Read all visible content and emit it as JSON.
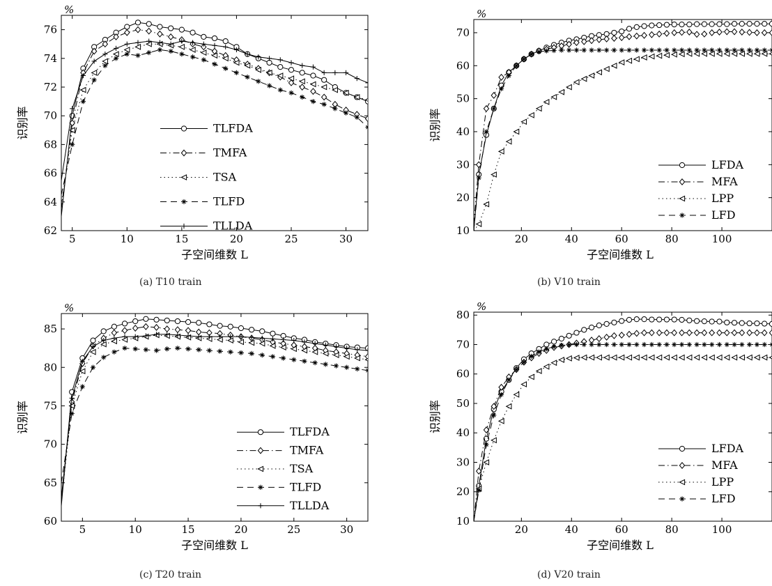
{
  "figure": {
    "captions": [
      "(a) T10 train",
      "(b) V10 train",
      "(c) T20 train",
      "(d) V20 train"
    ]
  },
  "chart_data": [
    {
      "id": "a",
      "type": "line",
      "caption": "(a) T10 train",
      "xlabel": "子空间维数 L",
      "ylabel": "识别率",
      "unit_label": "%",
      "xlim": [
        4,
        32
      ],
      "ylim": [
        62,
        77
      ],
      "xticks": [
        5,
        10,
        15,
        20,
        25,
        30
      ],
      "yticks": [
        62,
        64,
        66,
        68,
        70,
        72,
        74,
        76
      ],
      "legend_position": "center",
      "grid": false,
      "x": [
        4,
        5,
        6,
        7,
        8,
        9,
        10,
        11,
        12,
        13,
        14,
        15,
        16,
        17,
        18,
        19,
        20,
        21,
        22,
        23,
        24,
        25,
        26,
        27,
        28,
        29,
        30,
        31,
        32
      ],
      "series": [
        {
          "name": "TLFDA",
          "marker": "circle",
          "dash": "solid",
          "values": [
            63.0,
            70.0,
            73.3,
            74.8,
            75.3,
            75.8,
            76.2,
            76.5,
            76.4,
            76.2,
            76.1,
            76.0,
            75.8,
            75.5,
            75.4,
            75.2,
            74.8,
            74.3,
            74.0,
            73.7,
            73.4,
            73.2,
            73.0,
            72.8,
            72.5,
            72.0,
            71.6,
            71.3,
            71.0
          ]
        },
        {
          "name": "TMFA",
          "marker": "diamond",
          "dash": "dashdot",
          "values": [
            63.5,
            69.5,
            73.0,
            74.5,
            75.0,
            75.5,
            75.8,
            76.0,
            75.9,
            75.7,
            75.5,
            75.3,
            75.0,
            74.8,
            74.5,
            74.2,
            73.9,
            73.6,
            73.3,
            73.0,
            72.7,
            72.3,
            72.0,
            71.7,
            71.3,
            70.8,
            70.4,
            70.1,
            69.8
          ]
        },
        {
          "name": "TSA",
          "marker": "triangle-left",
          "dash": "dotted",
          "values": [
            63.8,
            69.0,
            71.8,
            73.0,
            73.8,
            74.3,
            74.6,
            74.8,
            75.0,
            75.0,
            74.9,
            74.8,
            74.6,
            74.4,
            74.2,
            74.0,
            73.7,
            73.5,
            73.2,
            73.0,
            72.8,
            72.6,
            72.4,
            72.2,
            72.0,
            71.8,
            71.6,
            71.3,
            71.1
          ]
        },
        {
          "name": "TLFD",
          "marker": "asterisk",
          "dash": "dashed",
          "values": [
            64.5,
            68.0,
            71.0,
            72.5,
            73.5,
            74.0,
            74.3,
            74.2,
            74.4,
            74.6,
            74.5,
            74.3,
            74.1,
            73.9,
            73.6,
            73.3,
            73.0,
            72.7,
            72.4,
            72.1,
            71.8,
            71.6,
            71.3,
            71.0,
            70.8,
            70.5,
            70.2,
            69.9,
            69.2
          ]
        },
        {
          "name": "TLLDA",
          "marker": "plus",
          "dash": "solid",
          "values": [
            65.5,
            70.5,
            72.8,
            73.8,
            74.3,
            74.7,
            75.0,
            75.1,
            75.2,
            75.1,
            75.0,
            75.2,
            75.1,
            75.0,
            74.9,
            74.8,
            74.6,
            74.3,
            74.1,
            74.0,
            73.9,
            73.7,
            73.5,
            73.4,
            73.0,
            73.0,
            73.0,
            72.6,
            72.3
          ]
        }
      ]
    },
    {
      "id": "b",
      "type": "line",
      "caption": "(b) V10 train",
      "xlabel": "子空间维数 L",
      "ylabel": "识别率",
      "unit_label": "%",
      "xlim": [
        1,
        120
      ],
      "ylim": [
        10,
        74
      ],
      "xticks": [
        20,
        40,
        60,
        80,
        100
      ],
      "yticks": [
        10,
        20,
        30,
        40,
        50,
        60,
        70
      ],
      "legend_position": "bottom-right",
      "grid": false,
      "x": [
        1,
        3,
        6,
        9,
        12,
        15,
        18,
        21,
        24,
        27,
        30,
        33,
        36,
        39,
        42,
        45,
        48,
        51,
        54,
        57,
        60,
        63,
        66,
        69,
        72,
        75,
        78,
        81,
        84,
        87,
        90,
        93,
        96,
        99,
        102,
        105,
        108,
        111,
        114,
        117,
        120
      ],
      "series": [
        {
          "name": "LFDA",
          "marker": "circle",
          "dash": "solid",
          "values": [
            10,
            27,
            39,
            47,
            54,
            58,
            60,
            62,
            63.5,
            64.5,
            65.5,
            66.3,
            67,
            67.6,
            68,
            68.5,
            69,
            69.3,
            69.6,
            70,
            70.4,
            71.2,
            71.7,
            72,
            72.2,
            72.3,
            72.4,
            72.5,
            72.5,
            72.5,
            72.6,
            72.6,
            72.6,
            72.6,
            72.6,
            72.7,
            72.7,
            72.7,
            72.7,
            72.7,
            72.7
          ]
        },
        {
          "name": "MFA",
          "marker": "diamond",
          "dash": "dashdot",
          "values": [
            12,
            30,
            47,
            51,
            56.5,
            58,
            60,
            62,
            63.5,
            64.5,
            65,
            65.5,
            66,
            66.5,
            67,
            67.3,
            67.6,
            67.9,
            68.1,
            68.3,
            68.5,
            68.8,
            69,
            69.2,
            69.4,
            69.6,
            69.8,
            70,
            70.1,
            70.2,
            69.5,
            69.6,
            70,
            70.2,
            70.3,
            70.3,
            70.2,
            70.1,
            70,
            70,
            70
          ]
        },
        {
          "name": "LPP",
          "marker": "triangle-left",
          "dash": "dotted",
          "values": [
            10,
            12,
            18,
            27,
            34,
            37,
            40,
            43,
            45,
            47,
            49,
            50.5,
            52,
            53.5,
            55,
            56,
            57,
            58,
            59,
            60,
            61,
            61.5,
            62,
            62.5,
            62.8,
            63,
            63.2,
            63.4,
            63.5,
            63.6,
            63.6,
            63.6,
            63.6,
            63.6,
            63.6,
            63.6,
            63.6,
            63.6,
            63.6,
            63.6,
            63.6
          ]
        },
        {
          "name": "LFD",
          "marker": "asterisk",
          "dash": "dashed",
          "values": [
            10,
            26,
            40,
            47,
            53,
            57,
            60,
            62,
            63.5,
            64.2,
            64.5,
            64.6,
            64.7,
            64.7,
            64.7,
            64.7,
            64.7,
            64.7,
            64.7,
            64.7,
            64.7,
            64.7,
            64.7,
            64.7,
            64.7,
            64.7,
            64.7,
            64.7,
            64.7,
            64.7,
            64.7,
            64.7,
            64.7,
            64.7,
            64.7,
            64.7,
            64.7,
            64.7,
            64.7,
            64.7,
            64.7
          ]
        }
      ]
    },
    {
      "id": "c",
      "type": "line",
      "caption": "(c) T20 train",
      "xlabel": "子空间维数 L",
      "ylabel": "识别率",
      "unit_label": "%",
      "xlim": [
        3,
        32
      ],
      "ylim": [
        60,
        87
      ],
      "xticks": [
        5,
        10,
        15,
        20,
        25,
        30
      ],
      "yticks": [
        60,
        65,
        70,
        75,
        80,
        85
      ],
      "legend_position": "bottom-right",
      "grid": false,
      "x": [
        3,
        4,
        5,
        6,
        7,
        8,
        9,
        10,
        11,
        12,
        13,
        14,
        15,
        16,
        17,
        18,
        19,
        20,
        21,
        22,
        23,
        24,
        25,
        26,
        27,
        28,
        29,
        30,
        31,
        32
      ],
      "series": [
        {
          "name": "TLFDA",
          "marker": "circle",
          "dash": "solid",
          "values": [
            62,
            76.8,
            81.2,
            83.5,
            84.7,
            85.3,
            85.7,
            86.0,
            86.3,
            86.2,
            86.1,
            86.0,
            85.9,
            85.8,
            85.6,
            85.4,
            85.3,
            85.1,
            84.9,
            84.7,
            84.4,
            84.1,
            83.8,
            83.6,
            83.3,
            83.1,
            82.9,
            82.7,
            82.6,
            82.5
          ]
        },
        {
          "name": "TMFA",
          "marker": "diamond",
          "dash": "dashdot",
          "values": [
            63,
            75.5,
            80.5,
            82.8,
            83.8,
            84.5,
            84.8,
            85.1,
            85.3,
            85.2,
            85.0,
            84.9,
            84.8,
            84.6,
            84.5,
            84.4,
            84.2,
            84.0,
            83.8,
            83.6,
            83.3,
            83.1,
            82.9,
            82.7,
            82.5,
            82.2,
            82.0,
            81.8,
            81.6,
            81.4
          ]
        },
        {
          "name": "TSA",
          "marker": "triangle-left",
          "dash": "dotted",
          "values": [
            62.5,
            75.0,
            79.5,
            82.0,
            83.0,
            83.4,
            83.6,
            83.8,
            84.0,
            84.2,
            84.1,
            84.0,
            83.9,
            83.8,
            83.7,
            83.6,
            83.5,
            83.3,
            83.2,
            83.1,
            82.8,
            82.6,
            82.4,
            82.2,
            82.0,
            81.8,
            81.6,
            81.4,
            81.2,
            81.0
          ]
        },
        {
          "name": "TLFD",
          "marker": "asterisk",
          "dash": "dashed",
          "values": [
            65,
            74.0,
            77.5,
            80.0,
            81.3,
            82.0,
            82.5,
            82.4,
            82.3,
            82.2,
            82.4,
            82.5,
            82.4,
            82.3,
            82.2,
            82.1,
            82.0,
            81.9,
            81.8,
            81.6,
            81.4,
            81.2,
            81.0,
            80.8,
            80.6,
            80.4,
            80.2,
            80.0,
            79.8,
            79.6
          ]
        },
        {
          "name": "TLLDA",
          "marker": "plus",
          "dash": "solid",
          "values": [
            63,
            76.0,
            80.8,
            82.7,
            83.5,
            83.8,
            84.0,
            84.0,
            84.1,
            84.3,
            84.3,
            84.2,
            84.1,
            84.0,
            84.0,
            84.0,
            84.0,
            84.0,
            83.9,
            83.8,
            83.7,
            83.6,
            83.5,
            83.3,
            83.1,
            82.9,
            82.7,
            82.5,
            82.3,
            82.2
          ]
        }
      ]
    },
    {
      "id": "d",
      "type": "line",
      "caption": "(d) V20 train",
      "xlabel": "子空间维数 L",
      "ylabel": "识别率",
      "unit_label": "%",
      "xlim": [
        1,
        120
      ],
      "ylim": [
        10,
        81
      ],
      "xticks": [
        20,
        40,
        60,
        80,
        100
      ],
      "yticks": [
        10,
        20,
        30,
        40,
        50,
        60,
        70,
        80
      ],
      "legend_position": "bottom-right",
      "grid": false,
      "x": [
        1,
        3,
        6,
        9,
        12,
        15,
        18,
        21,
        24,
        27,
        30,
        33,
        36,
        39,
        42,
        45,
        48,
        51,
        54,
        57,
        60,
        63,
        66,
        69,
        72,
        75,
        78,
        81,
        84,
        87,
        90,
        93,
        96,
        99,
        102,
        105,
        108,
        111,
        114,
        117,
        120
      ],
      "series": [
        {
          "name": "LFDA",
          "marker": "circle",
          "dash": "solid",
          "values": [
            10,
            22,
            38,
            48,
            54,
            58,
            62,
            65,
            67,
            68.5,
            70,
            71,
            72,
            73,
            74,
            75,
            75.8,
            76.5,
            77,
            77.5,
            78,
            78.4,
            78.6,
            78.6,
            78.5,
            78.5,
            78.5,
            78.5,
            78.4,
            78.2,
            78.0,
            77.9,
            77.8,
            77.8,
            77.5,
            77.4,
            77.3,
            77.2,
            77.2,
            77.1,
            77.0
          ]
        },
        {
          "name": "MFA",
          "marker": "diamond",
          "dash": "dashdot",
          "values": [
            10,
            27,
            41,
            49,
            55.5,
            59,
            61.5,
            64,
            65.5,
            67,
            68,
            69,
            69.5,
            70,
            70.5,
            71,
            71.5,
            72,
            72.5,
            73,
            73.2,
            73.5,
            73.8,
            74,
            74,
            74,
            74,
            74,
            74,
            74,
            74,
            74,
            74,
            74,
            74,
            74,
            74,
            74,
            74,
            74,
            74
          ]
        },
        {
          "name": "LPP",
          "marker": "triangle-left",
          "dash": "dotted",
          "values": [
            10,
            21,
            30,
            37.5,
            44,
            49,
            53,
            56.5,
            59,
            61,
            62.5,
            63.8,
            64.8,
            65.3,
            65.5,
            65.6,
            65.6,
            65.6,
            65.6,
            65.6,
            65.6,
            65.6,
            65.6,
            65.6,
            65.6,
            65.6,
            65.6,
            65.6,
            65.6,
            65.6,
            65.6,
            65.6,
            65.6,
            65.6,
            65.6,
            65.6,
            65.6,
            65.6,
            65.6,
            65.6,
            65.6
          ]
        },
        {
          "name": "LFD",
          "marker": "asterisk",
          "dash": "dashed",
          "values": [
            10,
            20.5,
            36,
            46,
            53,
            58,
            61.5,
            64,
            66,
            67.5,
            68.5,
            69.3,
            69.7,
            69.9,
            70,
            70,
            70,
            70,
            70,
            70,
            70,
            70,
            70,
            70,
            70,
            70,
            70,
            70,
            70,
            70,
            70,
            70,
            70,
            70,
            70,
            70,
            70,
            70,
            70,
            70,
            70
          ]
        }
      ]
    }
  ]
}
